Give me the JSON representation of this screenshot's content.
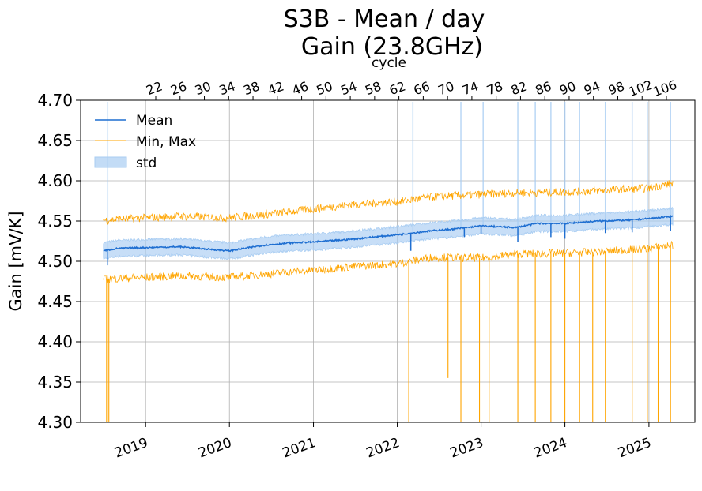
{
  "chart_data": {
    "type": "line",
    "title_line1": "S3B - Mean / day",
    "title_line2": "Gain (23.8GHz)",
    "ylabel": "Gain [mV/K]",
    "top_axis_label": "cycle",
    "ylim": [
      4.3,
      4.7
    ],
    "xlim": [
      "2018-03-24",
      "2025-07-20"
    ],
    "y_ticks": [
      "4.30",
      "4.35",
      "4.40",
      "4.45",
      "4.50",
      "4.55",
      "4.60",
      "4.65",
      "4.70"
    ],
    "x_ticks": [
      "2019",
      "2020",
      "2021",
      "2022",
      "2023",
      "2024",
      "2025"
    ],
    "cycle_ticks": [
      "22",
      "26",
      "30",
      "34",
      "38",
      "42",
      "46",
      "50",
      "54",
      "58",
      "62",
      "66",
      "70",
      "74",
      "78",
      "82",
      "86",
      "90",
      "94",
      "98",
      "102",
      "106"
    ],
    "legend": {
      "position": "top-left",
      "mean_label": "Mean",
      "minmax_label": "Min, Max",
      "std_label": "std"
    },
    "colors": {
      "mean": "#1f6fd1",
      "minmax": "#ffa500",
      "std_fill": "#a9cdf2",
      "grid": "#b0b0b0"
    },
    "series": [
      {
        "name": "Mean",
        "x": [
          "2018-07-01",
          "2018-09-01",
          "2019-01-01",
          "2019-06-01",
          "2019-10-01",
          "2020-01-01",
          "2020-06-01",
          "2020-10-01",
          "2021-01-01",
          "2021-06-01",
          "2022-01-01",
          "2022-06-01",
          "2022-09-01",
          "2023-01-01",
          "2023-06-01",
          "2023-09-01",
          "2024-01-01",
          "2024-06-01",
          "2024-10-01",
          "2025-01-01",
          "2025-04-15"
        ],
        "y": [
          4.513,
          4.516,
          4.517,
          4.518,
          4.515,
          4.513,
          4.52,
          4.523,
          4.524,
          4.527,
          4.533,
          4.538,
          4.54,
          4.544,
          4.542,
          4.547,
          4.547,
          4.55,
          4.551,
          4.553,
          4.556
        ]
      },
      {
        "name": "Max",
        "x": [
          "2018-07-01",
          "2019-01-01",
          "2019-06-01",
          "2020-01-01",
          "2020-06-01",
          "2021-01-01",
          "2021-06-01",
          "2022-01-01",
          "2022-06-01",
          "2023-01-01",
          "2023-06-01",
          "2024-01-01",
          "2024-06-01",
          "2025-01-01",
          "2025-04-15"
        ],
        "y": [
          4.551,
          4.554,
          4.556,
          4.554,
          4.558,
          4.565,
          4.57,
          4.574,
          4.58,
          4.583,
          4.585,
          4.586,
          4.588,
          4.591,
          4.597
        ]
      },
      {
        "name": "Min",
        "x": [
          "2018-07-01",
          "2019-01-01",
          "2019-06-01",
          "2020-01-01",
          "2020-06-01",
          "2021-01-01",
          "2021-06-01",
          "2022-01-01",
          "2022-06-01",
          "2023-01-01",
          "2023-06-01",
          "2024-01-01",
          "2024-06-01",
          "2025-01-01",
          "2025-04-15"
        ],
        "y": [
          4.478,
          4.48,
          4.482,
          4.48,
          4.484,
          4.489,
          4.493,
          4.497,
          4.505,
          4.504,
          4.509,
          4.51,
          4.512,
          4.516,
          4.52
        ]
      }
    ],
    "std_offset": 0.01,
    "spikes_min": [
      {
        "x": "2018-07-15",
        "y": 4.3
      },
      {
        "x": "2018-07-25",
        "y": 4.3
      },
      {
        "x": "2022-02-20",
        "y": 4.3
      },
      {
        "x": "2022-08-10",
        "y": 4.355
      },
      {
        "x": "2022-10-05",
        "y": 4.3
      },
      {
        "x": "2022-12-25",
        "y": 4.3
      },
      {
        "x": "2023-02-05",
        "y": 4.3
      },
      {
        "x": "2023-06-10",
        "y": 4.3
      },
      {
        "x": "2023-08-25",
        "y": 4.3
      },
      {
        "x": "2023-11-01",
        "y": 4.3
      },
      {
        "x": "2024-01-01",
        "y": 4.3
      },
      {
        "x": "2024-03-05",
        "y": 4.3
      },
      {
        "x": "2024-05-01",
        "y": 4.3
      },
      {
        "x": "2024-06-25",
        "y": 4.3
      },
      {
        "x": "2024-10-20",
        "y": 4.3
      },
      {
        "x": "2024-12-25",
        "y": 4.3
      },
      {
        "x": "2025-02-10",
        "y": 4.3
      },
      {
        "x": "2025-04-05",
        "y": 4.3
      }
    ],
    "spikes_std": [
      "2018-07-20",
      "2022-03-10",
      "2022-10-05",
      "2023-01-10",
      "2023-06-10",
      "2023-08-25",
      "2023-11-01",
      "2024-01-01",
      "2024-03-05",
      "2024-06-25",
      "2024-10-20",
      "2024-12-25",
      "2025-04-05"
    ],
    "spikes_mean_dips": [
      {
        "x": "2018-07-20",
        "y": 4.495
      },
      {
        "x": "2022-03-01",
        "y": 4.513
      },
      {
        "x": "2022-10-20",
        "y": 4.53
      },
      {
        "x": "2023-01-01",
        "y": 4.534
      },
      {
        "x": "2023-06-10",
        "y": 4.524
      },
      {
        "x": "2023-11-01",
        "y": 4.53
      },
      {
        "x": "2024-01-01",
        "y": 4.528
      },
      {
        "x": "2024-06-25",
        "y": 4.535
      },
      {
        "x": "2024-10-20",
        "y": 4.536
      },
      {
        "x": "2025-04-05",
        "y": 4.538
      }
    ]
  }
}
